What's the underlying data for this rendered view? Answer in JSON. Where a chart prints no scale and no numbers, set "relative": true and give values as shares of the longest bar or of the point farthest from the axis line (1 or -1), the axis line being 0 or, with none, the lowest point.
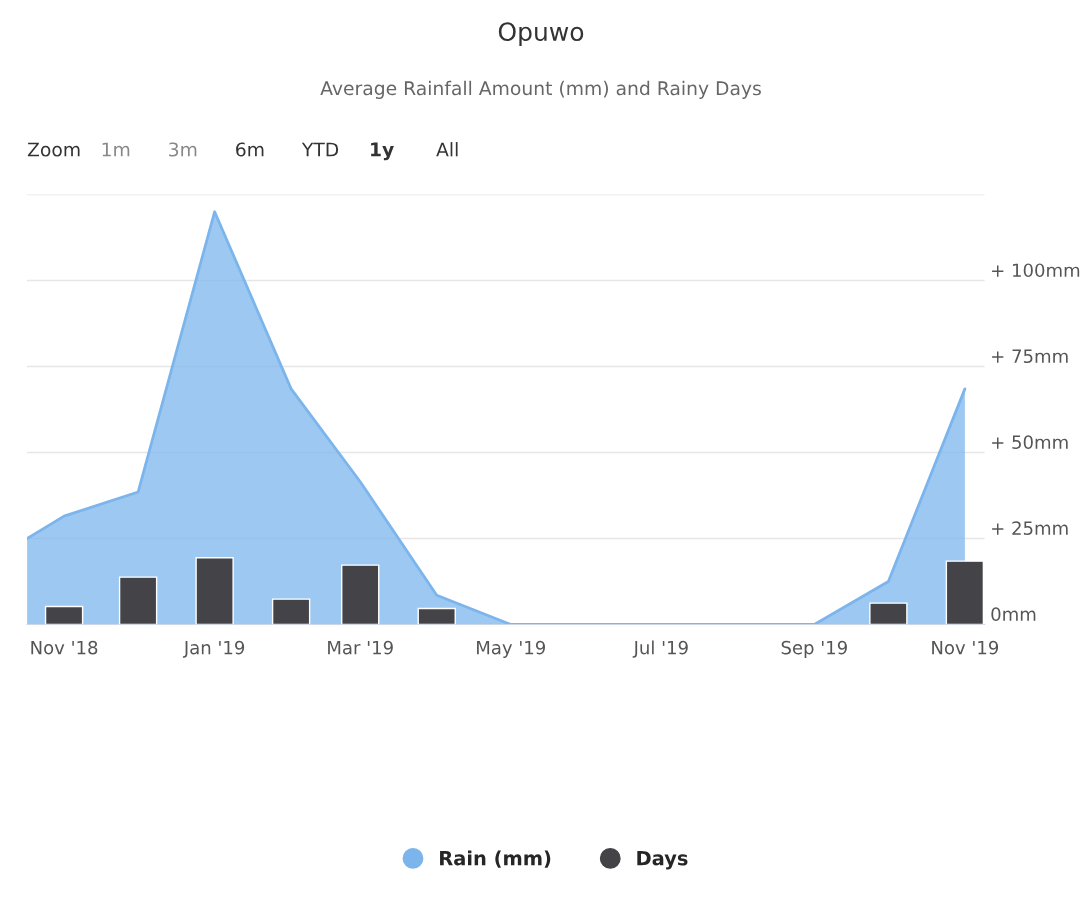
{
  "chart_data": [
    {
      "type": "area",
      "title": "Opuwo",
      "subtitle": "Average Rainfall Amount (mm) and Rainy Days",
      "annotations": [
        "Zoom",
        "1m",
        "3m",
        "6m",
        "YTD",
        "1y",
        "All"
      ],
      "x": [
        "2018-10-17",
        "2018-11-01",
        "2018-12-01",
        "2019-01-01",
        "2019-02-01",
        "2019-03-01",
        "2019-04-01",
        "2019-05-01",
        "2019-06-01",
        "2019-07-01",
        "2019-08-01",
        "2019-09-01",
        "2019-10-01",
        "2019-11-01"
      ],
      "series": [
        {
          "name": "Rain (mm)",
          "color": "#7cb5ec",
          "values": [
            25,
            31.5,
            38.5,
            120,
            68.5,
            41.5,
            8.5,
            0,
            0,
            0,
            0,
            0,
            12.5,
            68.5
          ]
        }
      ],
      "xlim": [
        "2018-10-17",
        "2019-11-09"
      ],
      "xticks": [
        {
          "value": "2018-11-01",
          "label": "Nov '18"
        },
        {
          "value": "2019-01-01",
          "label": "Jan '19"
        },
        {
          "value": "2019-03-01",
          "label": "Mar '19"
        },
        {
          "value": "2019-05-01",
          "label": "May '19"
        },
        {
          "value": "2019-07-01",
          "label": "Jul '19"
        },
        {
          "value": "2019-09-01",
          "label": "Sep '19"
        },
        {
          "value": "2019-11-01",
          "label": "Nov '19"
        }
      ],
      "ylim": [
        0,
        125
      ],
      "yticks": [
        {
          "value": 0,
          "label": "0mm"
        },
        {
          "value": 25,
          "label": "+ 25mm"
        },
        {
          "value": 50,
          "label": "+ 50mm"
        },
        {
          "value": 75,
          "label": "+ 75mm"
        },
        {
          "value": 100,
          "label": "+ 100mm"
        },
        {
          "value": 125,
          "label": null
        }
      ],
      "grid": "y",
      "legend": "bottom"
    },
    {
      "type": "bar",
      "relative": true,
      "x": [
        "2018-11-01",
        "2018-12-01",
        "2019-01-01",
        "2019-02-01",
        "2019-03-01",
        "2019-04-01",
        "2019-10-01",
        "2019-11-01"
      ],
      "series": [
        {
          "name": "Days",
          "color": "#434348",
          "values": [
            0.27,
            0.71,
            1,
            0.38,
            0.89,
            0.24,
            0.32,
            0.95
          ]
        }
      ],
      "xlim": [
        "2018-10-17",
        "2019-11-09"
      ],
      "legend": "bottom"
    }
  ]
}
